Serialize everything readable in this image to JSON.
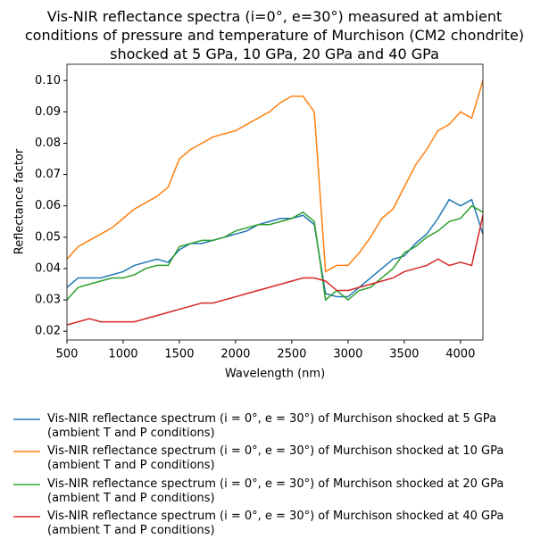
{
  "chart_data": {
    "type": "line",
    "title": "Vis-NIR reflectance spectra (i=0°, e=30°) measured at ambient\nconditions of pressure and temperature of Murchison (CM2 chondrite)\nshocked at 5 GPa, 10 GPa, 20 GPa and 40 GPa",
    "x_label": "Wavelength (nm)",
    "y_label": "Reflectance factor",
    "x": [
      500,
      600,
      700,
      800,
      900,
      1000,
      1100,
      1200,
      1300,
      1400,
      1500,
      1600,
      1700,
      1800,
      1900,
      2000,
      2100,
      2200,
      2300,
      2400,
      2500,
      2600,
      2700,
      2800,
      2900,
      3000,
      3100,
      3200,
      3300,
      3400,
      3500,
      3600,
      3700,
      3800,
      3900,
      4000,
      4100,
      4200
    ],
    "xlim": [
      500,
      4200
    ],
    "xticks": [
      500,
      1000,
      1500,
      2000,
      2500,
      3000,
      3500,
      4000
    ],
    "ylim": [
      0.0172,
      0.1052
    ],
    "yticks": [
      0.02,
      0.03,
      0.04,
      0.05,
      0.06,
      0.07,
      0.08,
      0.09,
      {
        "value": 0.1,
        "label": "0.10"
      }
    ],
    "series": [
      {
        "name": "Vis-NIR reflectance spectrum (i = 0°, e = 30°) of Murchison shocked at 5 GPa\n(ambient T and P conditions)",
        "color": "#1f77b4",
        "values": [
          0.034,
          0.037,
          0.037,
          0.037,
          0.038,
          0.039,
          0.041,
          0.042,
          0.043,
          0.042,
          0.046,
          0.048,
          0.048,
          0.049,
          0.05,
          0.051,
          0.052,
          0.054,
          0.055,
          0.056,
          0.056,
          0.057,
          0.054,
          0.032,
          0.031,
          0.031,
          0.034,
          0.037,
          0.04,
          0.043,
          0.044,
          0.048,
          0.051,
          0.056,
          0.062,
          0.06,
          0.062,
          0.051
        ]
      },
      {
        "name": "Vis-NIR reflectance spectrum (i = 0°, e = 30°) of Murchison shocked at 10 GPa\n(ambient T and P conditions)",
        "color": "#ff7f0e",
        "values": [
          0.043,
          0.047,
          0.049,
          0.051,
          0.053,
          0.056,
          0.059,
          0.061,
          0.063,
          0.066,
          0.075,
          0.078,
          0.08,
          0.082,
          0.083,
          0.084,
          0.086,
          0.088,
          0.09,
          0.093,
          0.095,
          0.095,
          0.09,
          0.039,
          0.041,
          0.041,
          0.045,
          0.05,
          0.056,
          0.059,
          0.066,
          0.073,
          0.078,
          0.084,
          0.086,
          0.09,
          0.088,
          0.1
        ]
      },
      {
        "name": "Vis-NIR reflectance spectrum (i = 0°, e = 30°) of Murchison shocked at 20 GPa\n(ambient T and P conditions)",
        "color": "#2ca02c",
        "values": [
          0.03,
          0.034,
          0.035,
          0.036,
          0.037,
          0.037,
          0.038,
          0.04,
          0.041,
          0.041,
          0.047,
          0.048,
          0.049,
          0.049,
          0.05,
          0.052,
          0.053,
          0.054,
          0.054,
          0.055,
          0.056,
          0.058,
          0.055,
          0.03,
          0.033,
          0.03,
          0.033,
          0.034,
          0.037,
          0.04,
          0.045,
          0.047,
          0.05,
          0.052,
          0.055,
          0.056,
          0.06,
          0.058
        ]
      },
      {
        "name": "Vis-NIR reflectance spectrum (i = 0°, e = 30°) of Murchison shocked at 40 GPa\n(ambient T and P conditions)",
        "color": "#d62728",
        "values": [
          0.022,
          0.023,
          0.024,
          0.023,
          0.023,
          0.023,
          0.023,
          0.024,
          0.025,
          0.026,
          0.027,
          0.028,
          0.029,
          0.029,
          0.03,
          0.031,
          0.032,
          0.033,
          0.034,
          0.035,
          0.036,
          0.037,
          0.037,
          0.036,
          0.033,
          0.033,
          0.034,
          0.035,
          0.036,
          0.037,
          0.039,
          0.04,
          0.041,
          0.043,
          0.041,
          0.042,
          0.041,
          0.057
        ]
      }
    ]
  }
}
